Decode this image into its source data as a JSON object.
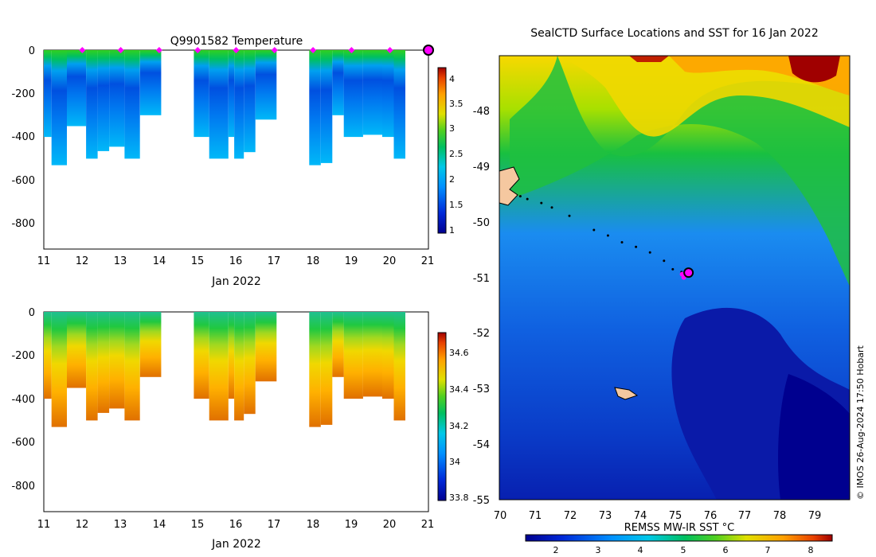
{
  "figure": {
    "credit": "© IMOS 26-Aug-2024 17:50 Hobart"
  },
  "temperature_panel": {
    "title": "Q9901582  Temperature",
    "xlabel": "Jan 2022",
    "x_ticks": [
      "11",
      "12",
      "13",
      "14",
      "15",
      "16",
      "17",
      "18",
      "19",
      "20",
      "21"
    ],
    "y_ticks": [
      "0",
      "-200",
      "-400",
      "-600",
      "-800"
    ],
    "colorbar_ticks": [
      "4",
      "3.5",
      "3",
      "2.5",
      "2",
      "1.5",
      "1"
    ]
  },
  "salinity_panel": {
    "xlabel": "Jan 2022",
    "x_ticks": [
      "11",
      "12",
      "13",
      "14",
      "15",
      "16",
      "17",
      "18",
      "19",
      "20",
      "21"
    ],
    "y_ticks": [
      "0",
      "-200",
      "-400",
      "-600",
      "-800"
    ],
    "colorbar_ticks": [
      "34.6",
      "34.4",
      "34.2",
      "34",
      "33.8"
    ]
  },
  "map_panel": {
    "title": "SealCTD Surface Locations and SST for 16 Jan 2022",
    "x_ticks": [
      "70",
      "71",
      "72",
      "73",
      "74",
      "75",
      "76",
      "77",
      "78",
      "79"
    ],
    "y_ticks": [
      "-48",
      "-49",
      "-50",
      "-51",
      "-52",
      "-53",
      "-54",
      "-55"
    ],
    "colorbar_label": "REMSS MW-IR SST °C",
    "colorbar_ticks": [
      "2",
      "3",
      "4",
      "5",
      "6",
      "7",
      "8"
    ]
  },
  "chart_data": [
    {
      "type": "heatmap",
      "title": "Q9901582  Temperature",
      "xlabel": "Jan 2022",
      "ylabel": "",
      "xlim": [
        11,
        21
      ],
      "ylim": [
        -920,
        0
      ],
      "colorbar": {
        "min": 0.9,
        "max": 4.2,
        "ticks": [
          1,
          1.5,
          2,
          2.5,
          3,
          3.5,
          4
        ]
      },
      "surface_markers_day": [
        12,
        13,
        14,
        15,
        16,
        17,
        18,
        19,
        20
      ],
      "latest_marker_day": 21,
      "profiles": [
        {
          "day": 11.0,
          "depth": 400
        },
        {
          "day": 11.2,
          "depth": 530
        },
        {
          "day": 11.6,
          "depth": 350
        },
        {
          "day": 12.1,
          "depth": 500
        },
        {
          "day": 12.4,
          "depth": 465
        },
        {
          "day": 12.7,
          "depth": 445
        },
        {
          "day": 13.1,
          "depth": 500
        },
        {
          "day": 13.5,
          "depth": 300
        },
        {
          "day": 14.9,
          "depth": 400
        },
        {
          "day": 15.3,
          "depth": 500
        },
        {
          "day": 15.8,
          "depth": 400
        },
        {
          "day": 15.95,
          "depth": 500
        },
        {
          "day": 16.2,
          "depth": 470
        },
        {
          "day": 16.5,
          "depth": 320
        },
        {
          "day": 17.9,
          "depth": 530
        },
        {
          "day": 18.2,
          "depth": 520
        },
        {
          "day": 18.5,
          "depth": 300
        },
        {
          "day": 18.8,
          "depth": 400
        },
        {
          "day": 19.3,
          "depth": 390
        },
        {
          "day": 19.8,
          "depth": 400
        },
        {
          "day": 20.1,
          "depth": 500
        }
      ]
    },
    {
      "type": "heatmap",
      "title": "",
      "xlabel": "Jan 2022",
      "ylabel": "",
      "xlim": [
        11,
        21
      ],
      "ylim": [
        -920,
        0
      ],
      "colorbar": {
        "min": 33.72,
        "max": 34.72,
        "ticks": [
          33.8,
          34,
          34.2,
          34.4,
          34.6
        ]
      }
    },
    {
      "type": "heatmap",
      "title": "SealCTD Surface Locations and SST for 16 Jan 2022",
      "xlabel": "REMSS MW-IR SST °C",
      "xlim": [
        70,
        80
      ],
      "ylim": [
        -55,
        -47.1
      ],
      "colorbar": {
        "min": 1.3,
        "max": 8.6,
        "ticks": [
          2,
          3,
          4,
          5,
          6,
          7,
          8
        ]
      },
      "track": [
        {
          "lon": 70.6,
          "lat": -49.6
        },
        {
          "lon": 70.8,
          "lat": -49.65
        },
        {
          "lon": 71.2,
          "lat": -49.72
        },
        {
          "lon": 71.5,
          "lat": -49.8
        },
        {
          "lon": 72.0,
          "lat": -49.95
        },
        {
          "lon": 72.7,
          "lat": -50.2
        },
        {
          "lon": 73.1,
          "lat": -50.3
        },
        {
          "lon": 73.5,
          "lat": -50.42
        },
        {
          "lon": 73.9,
          "lat": -50.5
        },
        {
          "lon": 74.3,
          "lat": -50.6
        },
        {
          "lon": 74.7,
          "lat": -50.75
        },
        {
          "lon": 74.95,
          "lat": -50.9
        },
        {
          "lon": 75.2,
          "lat": -50.95
        }
      ],
      "current_position": {
        "lon": 75.4,
        "lat": -50.96
      }
    }
  ]
}
